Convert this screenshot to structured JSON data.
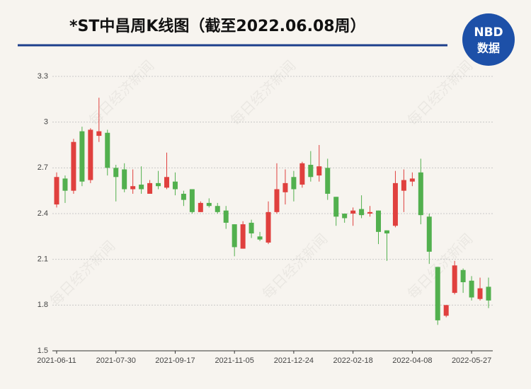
{
  "chart_data": {
    "type": "candlestick",
    "title": "*ST中昌周K线图（截至2022.06.08周）",
    "logo": {
      "top": "NBD",
      "bottom": "数据"
    },
    "watermark": "每日经济新闻",
    "categories": [
      "2021-06-11",
      null,
      null,
      null,
      null,
      null,
      null,
      "2021-07-30",
      null,
      null,
      null,
      null,
      null,
      null,
      "2021-09-17",
      null,
      null,
      null,
      null,
      null,
      null,
      "2021-11-05",
      null,
      null,
      null,
      null,
      null,
      null,
      "2021-12-24",
      null,
      null,
      null,
      null,
      null,
      null,
      "2022-02-18",
      null,
      null,
      null,
      null,
      null,
      null,
      "2022-04-08",
      null,
      null,
      null,
      null,
      null,
      null,
      "2022-05-27",
      null,
      null
    ],
    "open": [
      2.46,
      2.63,
      2.55,
      2.94,
      2.62,
      2.91,
      2.93,
      2.7,
      2.69,
      2.56,
      2.59,
      2.53,
      2.6,
      2.57,
      2.61,
      2.53,
      2.56,
      2.41,
      2.47,
      2.45,
      2.42,
      2.33,
      2.17,
      2.34,
      2.25,
      2.21,
      2.41,
      2.54,
      2.64,
      2.59,
      2.72,
      2.65,
      2.7,
      2.51,
      2.4,
      2.4,
      2.43,
      2.4,
      2.42,
      2.29,
      2.32,
      2.55,
      2.61,
      2.67,
      2.38,
      2.05,
      1.73,
      1.88,
      2.03,
      1.96,
      1.84,
      1.92
    ],
    "high": [
      2.67,
      2.65,
      2.89,
      2.97,
      2.96,
      3.16,
      2.95,
      2.72,
      2.73,
      2.69,
      2.71,
      2.62,
      2.68,
      2.8,
      2.67,
      2.55,
      2.56,
      2.48,
      2.5,
      2.47,
      2.45,
      2.33,
      2.35,
      2.36,
      2.28,
      2.48,
      2.73,
      2.69,
      2.68,
      2.74,
      2.81,
      2.85,
      2.76,
      2.51,
      2.4,
      2.44,
      2.52,
      2.45,
      2.42,
      2.29,
      2.68,
      2.69,
      2.67,
      2.76,
      2.4,
      2.05,
      1.8,
      2.09,
      2.04,
      1.99,
      1.98,
      1.98
    ],
    "low": [
      2.44,
      2.47,
      2.53,
      2.58,
      2.6,
      2.87,
      2.65,
      2.48,
      2.54,
      2.53,
      2.53,
      2.53,
      2.56,
      2.56,
      2.52,
      2.45,
      2.4,
      2.41,
      2.44,
      2.4,
      2.3,
      2.12,
      2.17,
      2.24,
      2.22,
      2.2,
      2.4,
      2.46,
      2.48,
      2.57,
      2.61,
      2.61,
      2.49,
      2.32,
      2.34,
      2.32,
      2.37,
      2.38,
      2.2,
      2.09,
      2.31,
      2.41,
      2.58,
      2.33,
      2.07,
      1.67,
      1.72,
      1.87,
      1.88,
      1.83,
      1.83,
      1.78
    ],
    "close": [
      2.64,
      2.55,
      2.87,
      2.61,
      2.95,
      2.94,
      2.7,
      2.64,
      2.56,
      2.58,
      2.56,
      2.6,
      2.58,
      2.64,
      2.56,
      2.49,
      2.41,
      2.47,
      2.45,
      2.41,
      2.34,
      2.18,
      2.33,
      2.27,
      2.23,
      2.41,
      2.56,
      2.6,
      2.56,
      2.73,
      2.64,
      2.71,
      2.53,
      2.38,
      2.37,
      2.42,
      2.39,
      2.41,
      2.28,
      2.27,
      2.6,
      2.62,
      2.63,
      2.39,
      2.15,
      1.7,
      1.8,
      2.06,
      1.95,
      1.85,
      1.91,
      1.83
    ],
    "up_color": "#e0403e",
    "down_color": "#52b04e",
    "ylim": [
      1.5,
      3.3
    ],
    "yticks": [
      1.5,
      1.8,
      2.1,
      2.4,
      2.7,
      3,
      3.3
    ],
    "grid": true
  }
}
